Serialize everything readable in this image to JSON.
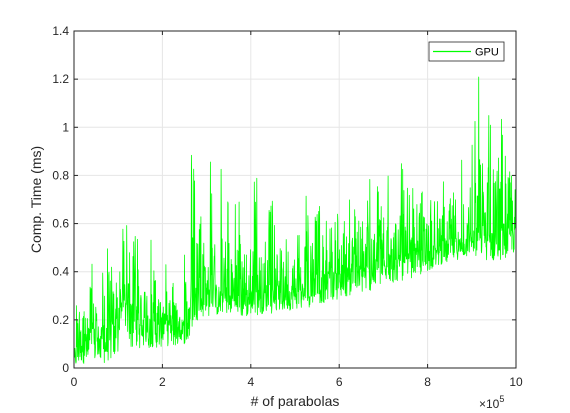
{
  "chart_data": {
    "type": "line",
    "xlabel": "# of parabolas",
    "ylabel": "Comp. Time (ms)",
    "x_exponent_label": "×10",
    "x_exponent_power": "5",
    "xlim": [
      0,
      10
    ],
    "ylim": [
      0,
      1.4
    ],
    "x_ticks": [
      0,
      2,
      4,
      6,
      8,
      10
    ],
    "x_tick_labels": [
      "0",
      "2",
      "4",
      "6",
      "8",
      "10"
    ],
    "y_ticks": [
      0,
      0.2,
      0.4,
      0.6,
      0.8,
      1.0,
      1.2,
      1.4
    ],
    "y_tick_labels": [
      "0",
      "0.2",
      "0.4",
      "0.6",
      "0.8",
      "1",
      "1.2",
      "1.4"
    ],
    "grid": true,
    "legend_position": "top-right",
    "series": [
      {
        "name": "GPU",
        "color": "#00ff00",
        "x": [
          0.0,
          0.1,
          0.2,
          0.3,
          0.4,
          0.5,
          0.6,
          0.7,
          0.8,
          0.9,
          1.0,
          1.1,
          1.2,
          1.3,
          1.4,
          1.5,
          1.6,
          1.7,
          1.8,
          1.9,
          2.0,
          2.1,
          2.2,
          2.3,
          2.4,
          2.5,
          2.6,
          2.7,
          2.8,
          2.9,
          3.0,
          3.1,
          3.2,
          3.3,
          3.4,
          3.5,
          3.6,
          3.7,
          3.8,
          3.9,
          4.0,
          4.1,
          4.2,
          4.3,
          4.4,
          4.5,
          4.6,
          4.7,
          4.8,
          4.9,
          5.0,
          5.1,
          5.2,
          5.3,
          5.4,
          5.5,
          5.6,
          5.7,
          5.8,
          5.9,
          6.0,
          6.1,
          6.2,
          6.3,
          6.4,
          6.5,
          6.6,
          6.7,
          6.8,
          6.9,
          7.0,
          7.1,
          7.2,
          7.3,
          7.4,
          7.5,
          7.6,
          7.7,
          7.8,
          7.9,
          8.0,
          8.1,
          8.2,
          8.3,
          8.4,
          8.5,
          8.6,
          8.7,
          8.8,
          8.9,
          9.0,
          9.1,
          9.2,
          9.3,
          9.4,
          9.5,
          9.6,
          9.7,
          9.8,
          9.9,
          10.0
        ],
        "y_low": [
          0.0,
          0.01,
          0.02,
          0.01,
          0.03,
          0.02,
          0.01,
          0.02,
          0.03,
          0.02,
          0.05,
          0.13,
          0.15,
          0.07,
          0.08,
          0.08,
          0.08,
          0.08,
          0.09,
          0.08,
          0.09,
          0.09,
          0.09,
          0.09,
          0.09,
          0.1,
          0.1,
          0.19,
          0.2,
          0.21,
          0.21,
          0.22,
          0.22,
          0.21,
          0.23,
          0.22,
          0.23,
          0.21,
          0.21,
          0.21,
          0.22,
          0.22,
          0.22,
          0.23,
          0.24,
          0.22,
          0.24,
          0.23,
          0.24,
          0.24,
          0.25,
          0.24,
          0.25,
          0.25,
          0.26,
          0.26,
          0.27,
          0.27,
          0.28,
          0.28,
          0.29,
          0.29,
          0.3,
          0.3,
          0.31,
          0.31,
          0.32,
          0.32,
          0.33,
          0.34,
          0.34,
          0.35,
          0.35,
          0.36,
          0.36,
          0.37,
          0.37,
          0.38,
          0.38,
          0.39,
          0.4,
          0.41,
          0.42,
          0.43,
          0.43,
          0.44,
          0.45,
          0.45,
          0.46,
          0.46,
          0.49,
          0.45,
          0.47,
          0.44,
          0.46,
          0.44,
          0.45,
          0.45,
          0.46,
          0.47,
          0.48
        ],
        "y_mid": [
          0.05,
          0.12,
          0.2,
          0.1,
          0.18,
          0.15,
          0.1,
          0.14,
          0.2,
          0.18,
          0.22,
          0.35,
          0.38,
          0.22,
          0.25,
          0.18,
          0.2,
          0.22,
          0.2,
          0.19,
          0.2,
          0.21,
          0.22,
          0.18,
          0.19,
          0.2,
          0.22,
          0.33,
          0.34,
          0.32,
          0.35,
          0.33,
          0.34,
          0.33,
          0.35,
          0.31,
          0.33,
          0.3,
          0.32,
          0.33,
          0.32,
          0.34,
          0.31,
          0.33,
          0.35,
          0.32,
          0.34,
          0.33,
          0.35,
          0.34,
          0.35,
          0.33,
          0.36,
          0.36,
          0.37,
          0.37,
          0.38,
          0.38,
          0.39,
          0.39,
          0.4,
          0.4,
          0.41,
          0.4,
          0.42,
          0.42,
          0.43,
          0.43,
          0.44,
          0.44,
          0.45,
          0.45,
          0.46,
          0.46,
          0.46,
          0.47,
          0.47,
          0.48,
          0.48,
          0.49,
          0.5,
          0.5,
          0.51,
          0.52,
          0.52,
          0.53,
          0.53,
          0.54,
          0.54,
          0.55,
          0.58,
          0.57,
          0.6,
          0.58,
          0.59,
          0.57,
          0.58,
          0.59,
          0.6,
          0.61,
          0.62
        ],
        "y_peak": [
          0.1,
          0.48,
          0.58,
          0.22,
          0.51,
          0.42,
          0.22,
          0.73,
          0.58,
          0.45,
          0.4,
          0.67,
          0.62,
          0.49,
          0.65,
          0.58,
          0.45,
          0.62,
          0.58,
          0.4,
          0.35,
          0.5,
          0.55,
          0.43,
          0.49,
          0.53,
          0.3,
          0.91,
          0.6,
          0.94,
          0.55,
          0.9,
          0.6,
          0.87,
          0.55,
          0.75,
          0.57,
          0.7,
          0.6,
          0.68,
          0.68,
          0.86,
          0.6,
          0.78,
          0.68,
          0.7,
          0.63,
          0.63,
          0.75,
          0.6,
          0.55,
          0.62,
          0.65,
          0.9,
          0.7,
          0.95,
          0.7,
          0.8,
          0.6,
          0.8,
          0.65,
          0.8,
          0.7,
          0.75,
          0.7,
          0.87,
          0.75,
          0.8,
          0.7,
          0.8,
          0.7,
          0.85,
          0.7,
          0.75,
          0.93,
          0.8,
          0.85,
          0.75,
          0.9,
          0.75,
          0.85,
          0.8,
          0.85,
          0.75,
          0.8,
          0.85,
          0.9,
          0.75,
          0.88,
          0.85,
          0.95,
          1.15,
          1.23,
          1.0,
          1.1,
          1.05,
          0.9,
          1.1,
          0.95,
          1.0,
          0.97
        ]
      }
    ]
  }
}
